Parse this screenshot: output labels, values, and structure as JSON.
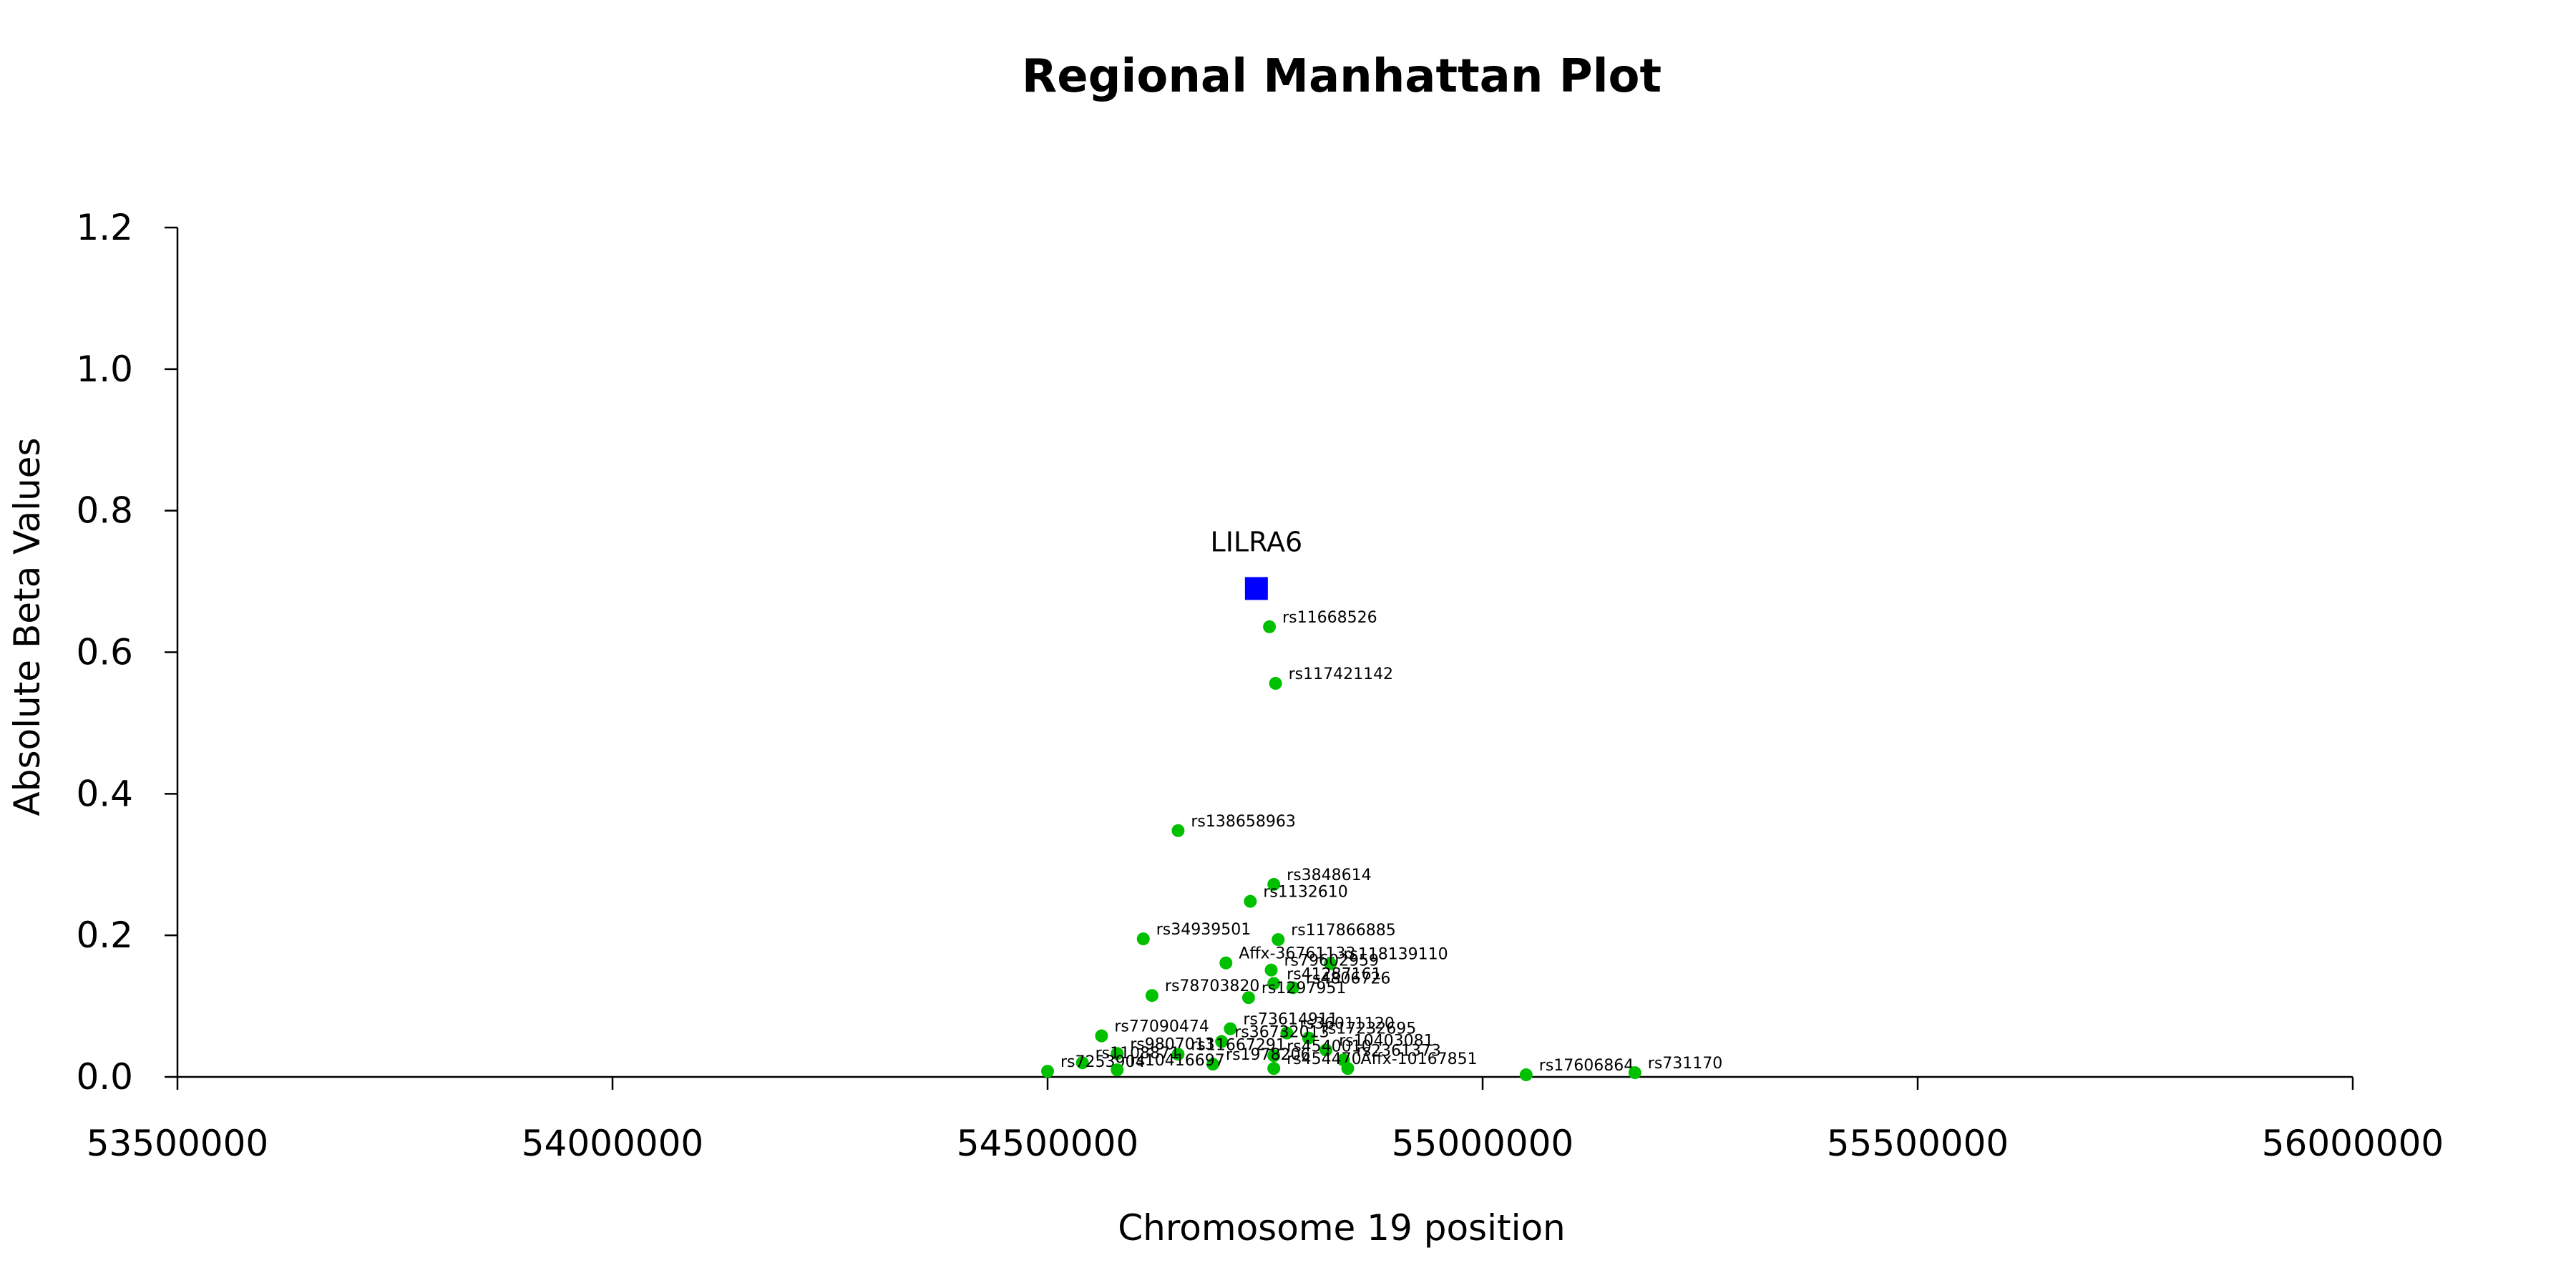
{
  "chart_data": {
    "type": "scatter",
    "title": "Regional Manhattan Plot",
    "xlabel": "Chromosome 19 position",
    "ylabel": "Absolute Beta Values",
    "xlim": [
      53500000,
      56000000
    ],
    "ylim": [
      0,
      1.2
    ],
    "x_ticks": [
      53500000,
      54000000,
      54500000,
      55000000,
      55500000,
      56000000
    ],
    "x_tick_labels": [
      "53500000",
      "54000000",
      "54500000",
      "55000000",
      "55500000",
      "56000000"
    ],
    "y_ticks": [
      0,
      0.2,
      0.4,
      0.6,
      0.8,
      1.0,
      1.2
    ],
    "y_tick_labels": [
      "0.0",
      "0.2",
      "0.4",
      "0.6",
      "0.8",
      "1.0",
      "1.2"
    ],
    "grid": false,
    "colors": {
      "gene": "#0000ff",
      "snp": "#00c000"
    },
    "series": [
      {
        "name": "LILRA6",
        "marker": "square",
        "color": "#0000ff",
        "points": [
          {
            "x": 54740000,
            "y": 0.69,
            "label": "LILRA6"
          }
        ]
      },
      {
        "marker": "circle",
        "color": "#00c000",
        "points": [
          {
            "x": 54755000,
            "y": 0.636,
            "label": "rs11668526"
          },
          {
            "x": 54762000,
            "y": 0.556,
            "label": "rs117421142"
          },
          {
            "x": 54650000,
            "y": 0.348,
            "label": "rs138658963"
          },
          {
            "x": 54760000,
            "y": 0.272,
            "label": "rs3848614"
          },
          {
            "x": 54733000,
            "y": 0.248,
            "label": "rs1132610"
          },
          {
            "x": 54610000,
            "y": 0.195,
            "label": "rs34939501"
          },
          {
            "x": 54765000,
            "y": 0.194,
            "label": "rs117866885"
          },
          {
            "x": 54705000,
            "y": 0.161,
            "label": "Affx-36761133"
          },
          {
            "x": 54825000,
            "y": 0.16,
            "label": "rs118139110"
          },
          {
            "x": 54757000,
            "y": 0.151,
            "label": "rs79602959"
          },
          {
            "x": 54760000,
            "y": 0.132,
            "label": "rs41287161"
          },
          {
            "x": 54782000,
            "y": 0.126,
            "label": "rs4806726"
          },
          {
            "x": 54620000,
            "y": 0.115,
            "label": "rs78703820"
          },
          {
            "x": 54731000,
            "y": 0.112,
            "label": "rs1297951"
          },
          {
            "x": 54710000,
            "y": 0.068,
            "label": "rs73614911"
          },
          {
            "x": 54562000,
            "y": 0.058,
            "label": "rs77090474"
          },
          {
            "x": 54775000,
            "y": 0.062,
            "label": "rs36011120"
          },
          {
            "x": 54800000,
            "y": 0.055,
            "label": "rs17232695"
          },
          {
            "x": 54700000,
            "y": 0.05,
            "label": "rs36732013"
          },
          {
            "x": 54580000,
            "y": 0.033,
            "label": "rs9807013"
          },
          {
            "x": 54650000,
            "y": 0.032,
            "label": "rs11667291"
          },
          {
            "x": 54820000,
            "y": 0.038,
            "label": "rs10403081"
          },
          {
            "x": 54760000,
            "y": 0.03,
            "label": "rs4540010"
          },
          {
            "x": 54540000,
            "y": 0.02,
            "label": "rs1108871"
          },
          {
            "x": 54840000,
            "y": 0.024,
            "label": "rs2361373"
          },
          {
            "x": 54690000,
            "y": 0.018,
            "label": "rs1978206"
          },
          {
            "x": 54500000,
            "y": 0.008,
            "label": "rs7253904"
          },
          {
            "x": 54580000,
            "y": 0.01,
            "label": "rs10416697"
          },
          {
            "x": 54760000,
            "y": 0.012,
            "label": "rs454470"
          },
          {
            "x": 54845000,
            "y": 0.012,
            "label": "Affx-10167851"
          },
          {
            "x": 55050000,
            "y": 0.003,
            "label": "rs17606864"
          },
          {
            "x": 55175000,
            "y": 0.006,
            "label": "rs731170"
          }
        ]
      }
    ]
  }
}
